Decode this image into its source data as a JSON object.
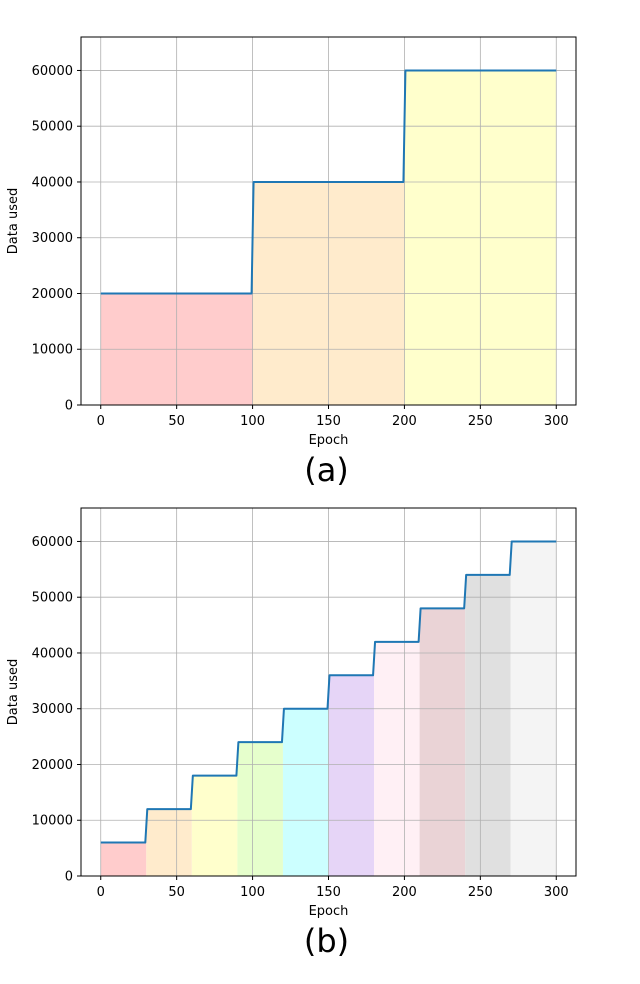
{
  "chart_data": [
    {
      "type": "area",
      "caption": "(a)",
      "xlabel": "Epoch",
      "ylabel": "Data used",
      "xlim": [
        -13,
        313
      ],
      "ylim": [
        0,
        66000
      ],
      "xticks": [
        0,
        50,
        100,
        150,
        200,
        250,
        300
      ],
      "yticks": [
        0,
        10000,
        20000,
        30000,
        40000,
        50000,
        60000
      ],
      "grid": true,
      "line_color": "#1f77b4",
      "stages": [
        {
          "start": 0,
          "end": 100,
          "value": 20000,
          "color": "#ffcccc"
        },
        {
          "start": 100,
          "end": 200,
          "value": 40000,
          "color": "#ffebcc"
        },
        {
          "start": 200,
          "end": 300,
          "value": 60000,
          "color": "#ffffcc"
        }
      ]
    },
    {
      "type": "area",
      "caption": "(b)",
      "xlabel": "Epoch",
      "ylabel": "Data used",
      "xlim": [
        -13,
        313
      ],
      "ylim": [
        0,
        66000
      ],
      "xticks": [
        0,
        50,
        100,
        150,
        200,
        250,
        300
      ],
      "yticks": [
        0,
        10000,
        20000,
        30000,
        40000,
        50000,
        60000
      ],
      "grid": true,
      "line_color": "#1f77b4",
      "stages": [
        {
          "start": 0,
          "end": 30,
          "value": 6000,
          "color": "#ffcccc"
        },
        {
          "start": 30,
          "end": 60,
          "value": 12000,
          "color": "#ffebcc"
        },
        {
          "start": 60,
          "end": 90,
          "value": 18000,
          "color": "#ffffcc"
        },
        {
          "start": 90,
          "end": 120,
          "value": 24000,
          "color": "#e6ffcc"
        },
        {
          "start": 120,
          "end": 150,
          "value": 30000,
          "color": "#ccffff"
        },
        {
          "start": 150,
          "end": 180,
          "value": 36000,
          "color": "#e6d5f7"
        },
        {
          "start": 180,
          "end": 210,
          "value": 42000,
          "color": "#fff0f5"
        },
        {
          "start": 210,
          "end": 240,
          "value": 48000,
          "color": "#ead3d6"
        },
        {
          "start": 240,
          "end": 270,
          "value": 54000,
          "color": "#e0e0e0"
        },
        {
          "start": 270,
          "end": 300,
          "value": 60000,
          "color": "#f4f4f4"
        }
      ]
    }
  ]
}
